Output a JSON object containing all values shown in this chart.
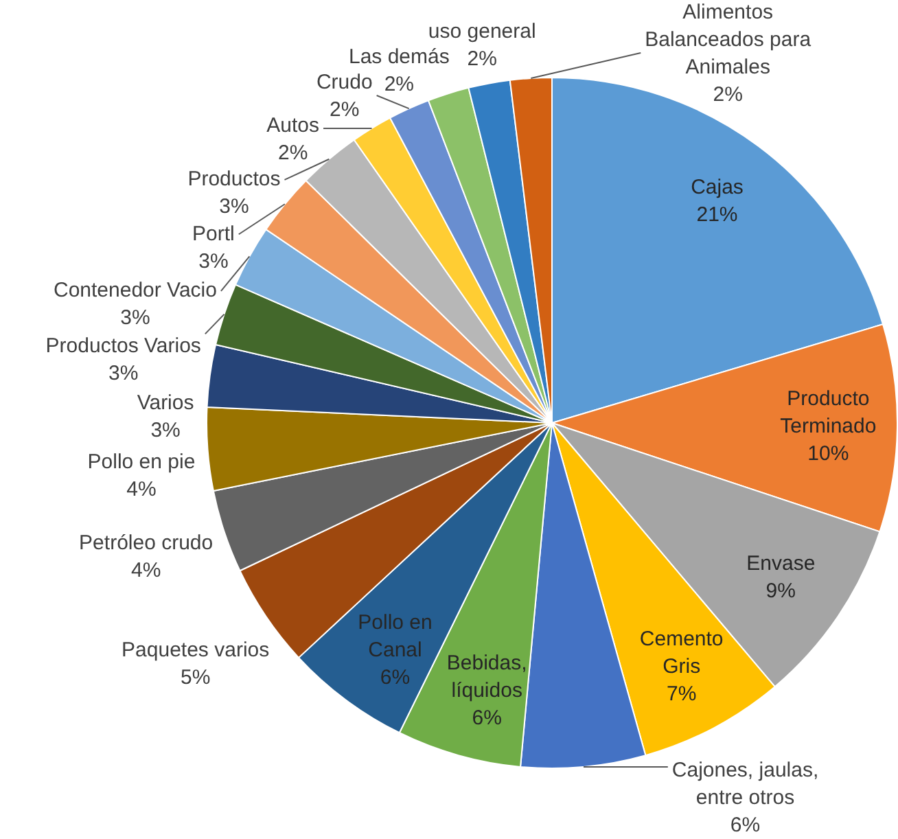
{
  "chart_data": {
    "type": "pie",
    "categories": [
      "Cajas",
      "Producto Terminado",
      "Envase",
      "Cemento Gris",
      "Cajones, jaulas, entre otros",
      "Bebidas, líquidos",
      "Pollo en Canal",
      "Paquetes varios",
      "Petróleo crudo",
      "Pollo en pie",
      "Varios",
      "Productos Varios",
      "Contenedor Vacio",
      "Portl",
      "Productos",
      "Autos",
      "Crudo",
      "Las demás",
      "uso general",
      "Alimentos Balanceados para Animales"
    ],
    "values": [
      21,
      10,
      9,
      7,
      6,
      6,
      6,
      5,
      4,
      4,
      3,
      3,
      3,
      3,
      3,
      2,
      2,
      2,
      2,
      2
    ],
    "colors": [
      "#5b9bd5",
      "#ed7d31",
      "#a5a5a5",
      "#ffc000",
      "#4472c4",
      "#70ad47",
      "#255e91",
      "#9e480e",
      "#636363",
      "#997300",
      "#264478",
      "#43682b",
      "#7cafdd",
      "#f1975a",
      "#b7b7b7",
      "#ffcd33",
      "#698ed0",
      "#8cc168",
      "#327dc2",
      "#d26012"
    ],
    "value_labels": [
      "21%",
      "10%",
      "9%",
      "7%",
      "6%",
      "6%",
      "6%",
      "5%",
      "4%",
      "4%",
      "3%",
      "3%",
      "3%",
      "3%",
      "3%",
      "2%",
      "2%",
      "2%",
      "2%",
      "2%"
    ]
  }
}
